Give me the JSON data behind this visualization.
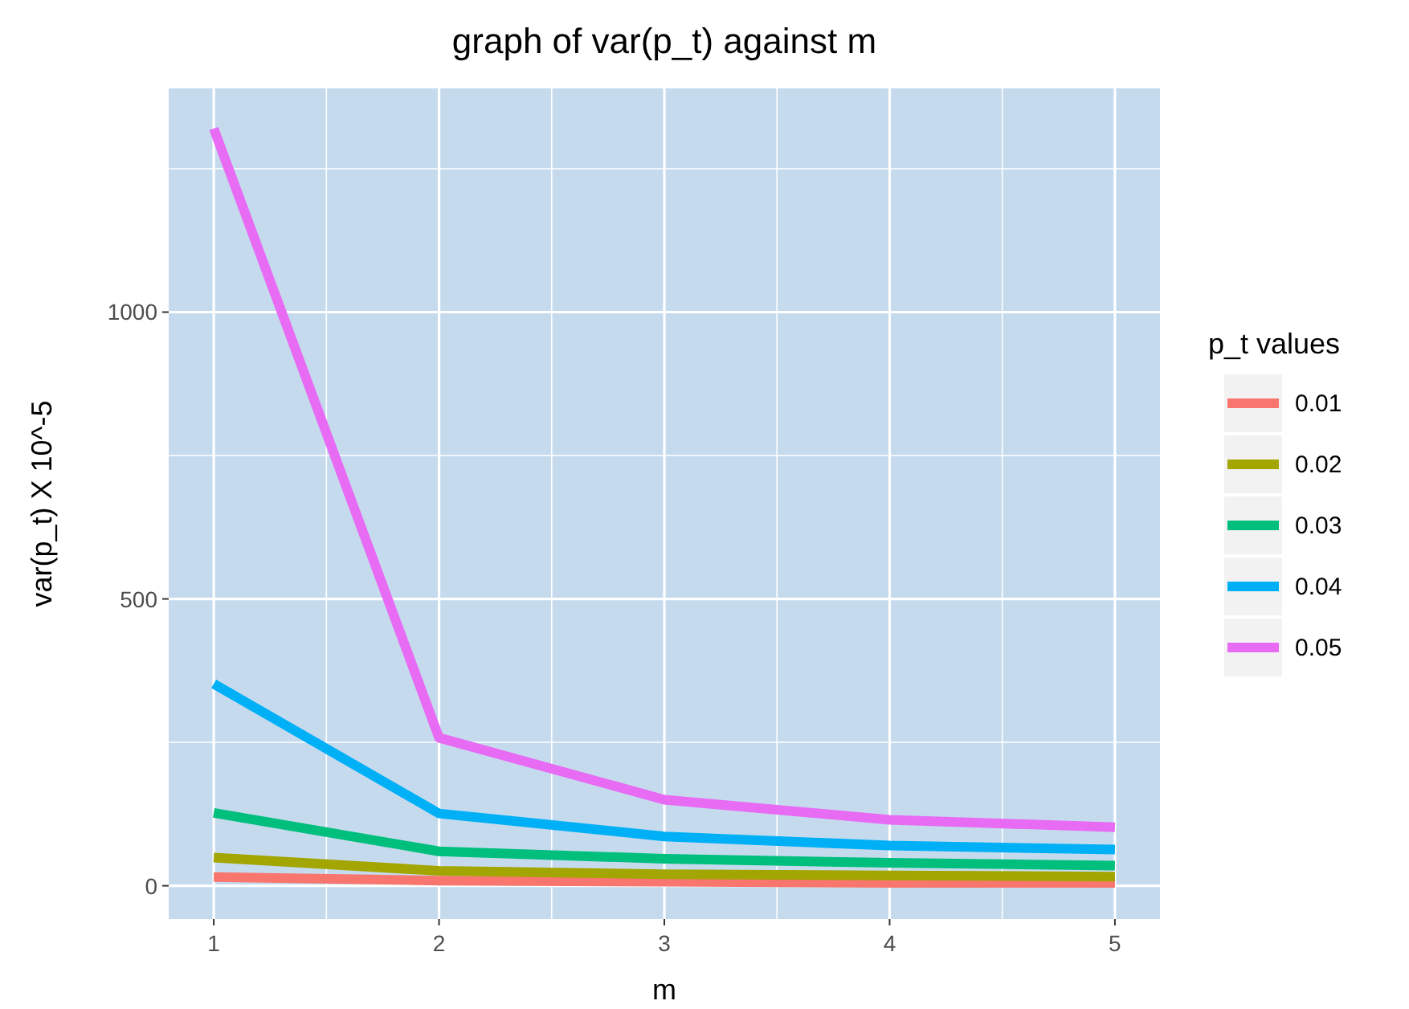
{
  "chart_data": {
    "type": "line",
    "title": "graph of var(p_t)  against m",
    "xlabel": "m",
    "ylabel": "var(p_t) X 10^-5",
    "legend_title": "p_t values",
    "legend": "right",
    "grid": true,
    "x": [
      1,
      2,
      3,
      4,
      5
    ],
    "xlim": [
      0.8,
      5.2
    ],
    "xticks": [
      1,
      2,
      3,
      4,
      5
    ],
    "ylim": [
      -58,
      1390
    ],
    "yticks": [
      0,
      500,
      1000
    ],
    "series": [
      {
        "name": "0.01",
        "color": "#f8766d",
        "values": [
          15,
          9,
          7,
          5,
          5
        ]
      },
      {
        "name": "0.02",
        "color": "#a3a500",
        "values": [
          49,
          26,
          20,
          18,
          16
        ]
      },
      {
        "name": "0.03",
        "color": "#00bf7d",
        "values": [
          127,
          60,
          47,
          40,
          35
        ]
      },
      {
        "name": "0.04",
        "color": "#00b0f6",
        "values": [
          352,
          126,
          86,
          70,
          63
        ]
      },
      {
        "name": "0.05",
        "color": "#e76bf3",
        "values": [
          1320,
          258,
          150,
          115,
          102
        ]
      }
    ]
  }
}
